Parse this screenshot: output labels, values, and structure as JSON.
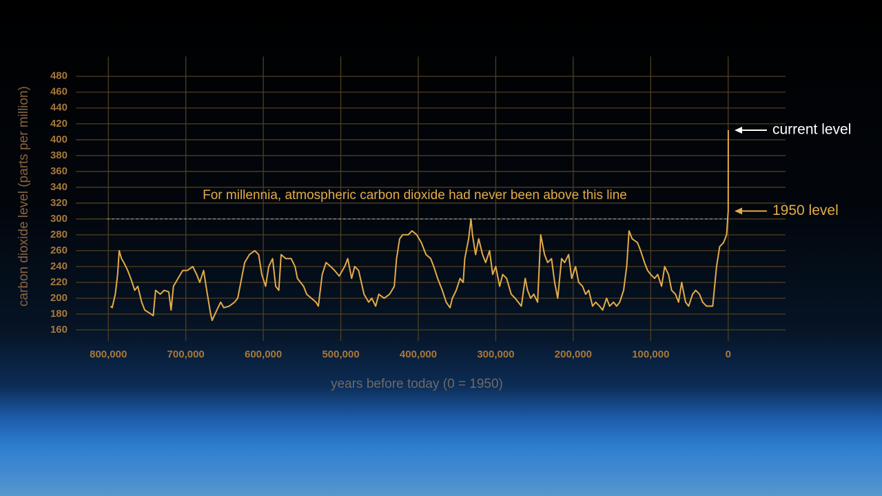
{
  "chart_data": {
    "type": "line",
    "ylabel": "carbon dioxide level (parts per million)",
    "xlabel": "years before today (0 = 1950)",
    "xlim": [
      842000,
      -74000
    ],
    "ylim": [
      146,
      505
    ],
    "xticks": [
      {
        "value": 800000,
        "label": "800,000"
      },
      {
        "value": 700000,
        "label": "700,000"
      },
      {
        "value": 600000,
        "label": "600,000"
      },
      {
        "value": 500000,
        "label": "500,000"
      },
      {
        "value": 400000,
        "label": "400,000"
      },
      {
        "value": 300000,
        "label": "300,000"
      },
      {
        "value": 200000,
        "label": "200,000"
      },
      {
        "value": 100000,
        "label": "100,000"
      },
      0
    ],
    "yticks": [
      160,
      180,
      200,
      220,
      240,
      260,
      280,
      300,
      320,
      340,
      360,
      380,
      400,
      420,
      440,
      460,
      480
    ],
    "grid": true,
    "reference_line": {
      "text": "For millennia, atmospheric carbon dioxide had never been above this line",
      "y": 300
    },
    "annotations": [
      {
        "text": "current level",
        "y": 412
      },
      {
        "text": "1950 level",
        "y": 310
      }
    ],
    "series": [
      {
        "color": "#e4ac48",
        "x": [
          797000,
          795000,
          791000,
          788000,
          786000,
          783000,
          780000,
          775000,
          771000,
          766000,
          762000,
          757000,
          753000,
          748000,
          742000,
          739000,
          733000,
          728000,
          722000,
          719000,
          716000,
          710000,
          704000,
          698000,
          691000,
          686000,
          682000,
          677000,
          673000,
          668000,
          666000,
          660000,
          655000,
          651000,
          644000,
          637000,
          633000,
          628000,
          624000,
          618000,
          611000,
          606000,
          602000,
          597000,
          593000,
          588000,
          584000,
          580000,
          577000,
          571000,
          564000,
          559000,
          556000,
          548000,
          544000,
          538000,
          532000,
          529000,
          524000,
          519000,
          513000,
          508000,
          502000,
          495000,
          491000,
          486000,
          482000,
          477000,
          470000,
          464000,
          460000,
          455000,
          451000,
          444000,
          437000,
          431000,
          428000,
          424000,
          420000,
          413000,
          408000,
          402000,
          396000,
          390000,
          384000,
          380000,
          375000,
          369000,
          364000,
          359000,
          356000,
          351000,
          346000,
          342000,
          340000,
          335000,
          332000,
          330000,
          326000,
          322000,
          317000,
          313000,
          308000,
          304000,
          300000,
          295000,
          291000,
          286000,
          280000,
          275000,
          271000,
          267000,
          262000,
          259000,
          255000,
          251000,
          246000,
          242000,
          237000,
          233000,
          228000,
          224000,
          220000,
          215000,
          211000,
          206000,
          202000,
          197000,
          193000,
          188000,
          184000,
          180000,
          175000,
          171000,
          166000,
          162000,
          157000,
          153000,
          148000,
          144000,
          140000,
          135000,
          131000,
          128000,
          124000,
          117000,
          113000,
          108000,
          104000,
          100000,
          95000,
          91000,
          86000,
          82000,
          77000,
          73000,
          68000,
          64000,
          60000,
          55000,
          51000,
          46000,
          42000,
          37000,
          33000,
          28000,
          24000,
          20000,
          15000,
          11000,
          6000,
          2000,
          0,
          -68
        ],
        "values": [
          190,
          188,
          205,
          230,
          260,
          250,
          245,
          235,
          225,
          210,
          215,
          195,
          185,
          182,
          178,
          210,
          205,
          210,
          208,
          185,
          215,
          225,
          235,
          235,
          240,
          230,
          220,
          235,
          210,
          180,
          172,
          185,
          195,
          188,
          190,
          195,
          200,
          225,
          245,
          255,
          260,
          255,
          230,
          215,
          240,
          250,
          215,
          210,
          255,
          250,
          250,
          240,
          225,
          215,
          205,
          200,
          195,
          190,
          230,
          245,
          240,
          235,
          228,
          240,
          250,
          225,
          240,
          235,
          205,
          195,
          200,
          190,
          205,
          200,
          205,
          215,
          250,
          275,
          280,
          280,
          285,
          280,
          270,
          255,
          250,
          240,
          225,
          210,
          195,
          188,
          200,
          210,
          225,
          220,
          250,
          275,
          300,
          280,
          255,
          275,
          255,
          245,
          260,
          230,
          240,
          215,
          230,
          225,
          205,
          200,
          195,
          190,
          225,
          210,
          200,
          205,
          195,
          280,
          255,
          245,
          250,
          220,
          200,
          250,
          245,
          255,
          225,
          240,
          220,
          215,
          205,
          210,
          190,
          195,
          190,
          185,
          200,
          190,
          195,
          190,
          195,
          210,
          240,
          285,
          275,
          270,
          260,
          245,
          235,
          230,
          225,
          230,
          215,
          240,
          230,
          210,
          205,
          195,
          220,
          195,
          190,
          205,
          210,
          205,
          195,
          190,
          190,
          190,
          240,
          265,
          270,
          280,
          310,
          412
        ]
      }
    ]
  }
}
